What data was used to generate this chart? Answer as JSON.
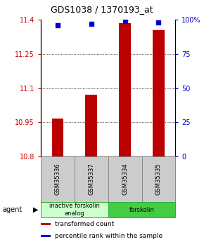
{
  "title": "GDS1038 / 1370193_at",
  "categories": [
    "GSM35336",
    "GSM35337",
    "GSM35334",
    "GSM35335"
  ],
  "bar_values": [
    10.965,
    11.07,
    11.385,
    11.355
  ],
  "percentile_values": [
    96,
    97,
    99,
    98
  ],
  "ylim_left": [
    10.8,
    11.4
  ],
  "ylim_right": [
    0,
    100
  ],
  "yticks_left": [
    10.8,
    10.95,
    11.1,
    11.25,
    11.4
  ],
  "ytick_labels_left": [
    "10.8",
    "10.95",
    "11.1",
    "11.25",
    "11.4"
  ],
  "yticks_right": [
    0,
    25,
    50,
    75,
    100
  ],
  "ytick_labels_right": [
    "0",
    "25",
    "50",
    "75",
    "100%"
  ],
  "bar_color": "#bb0000",
  "marker_color": "#0000cc",
  "bar_bottom": 10.8,
  "groups": [
    {
      "label": "inactive forskolin\nanalog",
      "color": "#ccffcc",
      "indices": [
        0,
        1
      ]
    },
    {
      "label": "forskolin",
      "color": "#44cc44",
      "indices": [
        2,
        3
      ]
    }
  ],
  "agent_label": "agent",
  "legend_bar_label": "transformed count",
  "legend_marker_label": "percentile rank within the sample",
  "grid_yticks": [
    10.95,
    11.1,
    11.25
  ],
  "background_color": "#ffffff"
}
